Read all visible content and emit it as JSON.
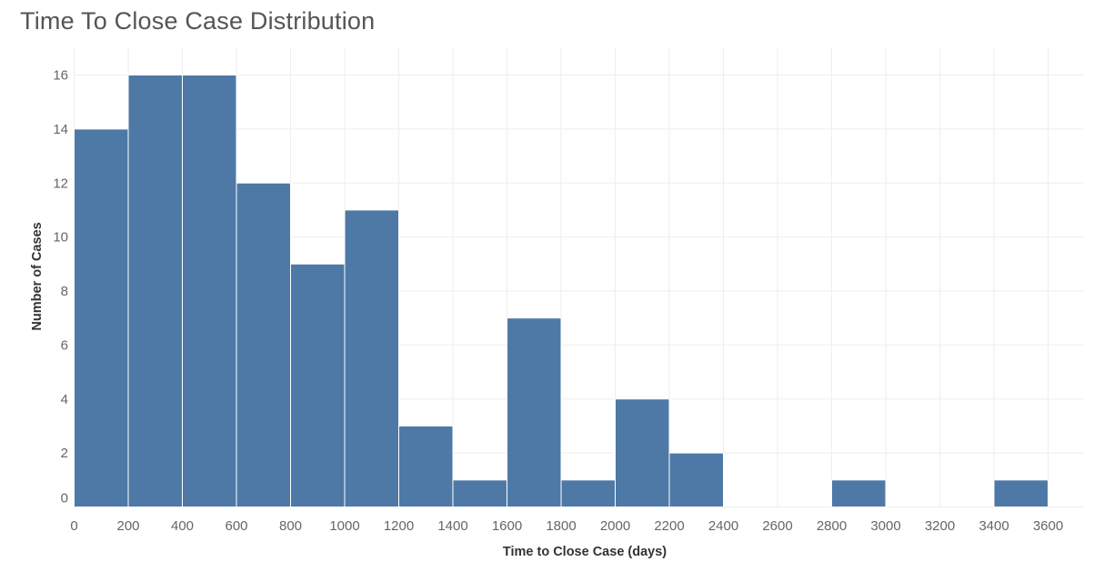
{
  "title": "Time To Close Case Distribution",
  "chart_data": {
    "type": "bar",
    "title": "Time To Close Case Distribution",
    "xlabel": "Time to Close Case (days)",
    "ylabel": "Number of Cases",
    "bin_width": 200,
    "bins": [
      {
        "start": 0,
        "count": 14
      },
      {
        "start": 200,
        "count": 16
      },
      {
        "start": 400,
        "count": 16
      },
      {
        "start": 600,
        "count": 12
      },
      {
        "start": 800,
        "count": 9
      },
      {
        "start": 1000,
        "count": 11
      },
      {
        "start": 1200,
        "count": 3
      },
      {
        "start": 1400,
        "count": 1
      },
      {
        "start": 1600,
        "count": 7
      },
      {
        "start": 1800,
        "count": 1
      },
      {
        "start": 2000,
        "count": 4
      },
      {
        "start": 2200,
        "count": 2
      },
      {
        "start": 2800,
        "count": 1
      },
      {
        "start": 3400,
        "count": 1
      }
    ],
    "xticks": [
      0,
      200,
      400,
      600,
      800,
      1000,
      1200,
      1400,
      1600,
      1800,
      2000,
      2200,
      2400,
      2600,
      2800,
      3000,
      3200,
      3400,
      3600
    ],
    "yticks": [
      0,
      2,
      4,
      6,
      8,
      10,
      12,
      14,
      16
    ],
    "xlim": [
      0,
      3800
    ],
    "ylim": [
      0,
      16
    ],
    "grid": true,
    "bar_color": "#4e79a7"
  }
}
